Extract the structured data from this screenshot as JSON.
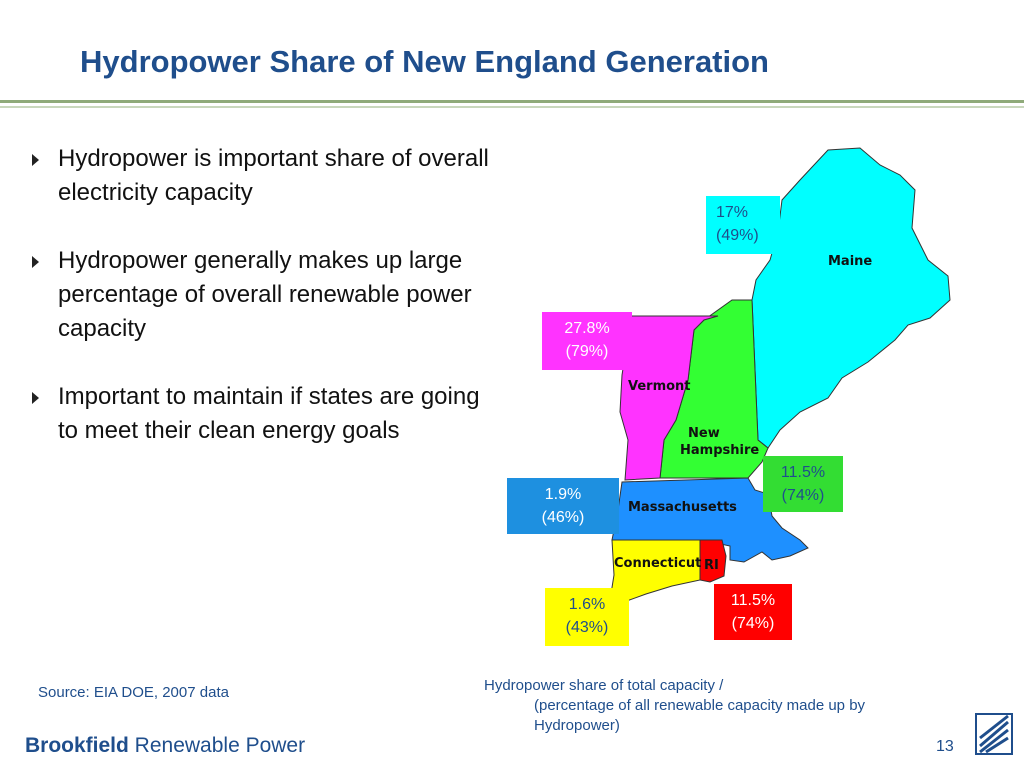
{
  "slide": {
    "title": "Hydropower Share of New England Generation",
    "page_number": "13"
  },
  "bullets": [
    "Hydropower is important share of overall electricity capacity",
    "Hydropower generally makes up large percentage of overall renewable power capacity",
    "Important to maintain if states are going to meet their clean energy goals"
  ],
  "map": {
    "states": [
      {
        "name": "Maine",
        "color": "#00ffff",
        "capacity_share": "17%",
        "renewable_share": "(49%)",
        "box_color": "#00ffff",
        "text_color": "#1f4e8c"
      },
      {
        "name": "Vermont",
        "color": "#ff33ff",
        "capacity_share": "27.8%",
        "renewable_share": "(79%)",
        "box_color": "#ff33ff",
        "text_color": "#ffffff"
      },
      {
        "name": "New\nHampshire",
        "color": "#33ff33",
        "capacity_share": "11.5%",
        "renewable_share": "(74%)",
        "box_color": "#33dd33",
        "text_color": "#1f4e8c"
      },
      {
        "name": "Massachusetts",
        "color": "#1e90ff",
        "capacity_share": "1.9%",
        "renewable_share": "(46%)",
        "box_color": "#1e90e0",
        "text_color": "#ffffff"
      },
      {
        "name": "Connecticut",
        "color": "#ffff00",
        "capacity_share": "1.6%",
        "renewable_share": "(43%)",
        "box_color": "#ffff00",
        "text_color": "#1f4e8c"
      },
      {
        "name": "RI",
        "color": "#ff0000",
        "capacity_share": "11.5%",
        "renewable_share": "(74%)",
        "box_color": "#ff0000",
        "text_color": "#ffffff"
      }
    ]
  },
  "source": "Source:  EIA DOE, 2007 data",
  "legend": {
    "line1": "Hydropower share of total capacity /",
    "line2": "(percentage of all renewable capacity made up by Hydropower)"
  },
  "footer": {
    "brand_bold": "Brookfield",
    "brand_rest": " Renewable Power"
  }
}
